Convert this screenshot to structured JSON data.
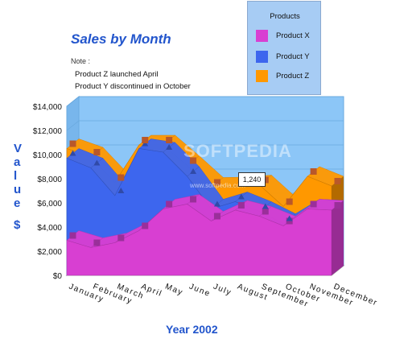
{
  "chart_data": {
    "type": "area",
    "title": "Sales by Month",
    "xlabel": "Year 2002",
    "ylabel": "Value $",
    "ylim": [
      0,
      14000
    ],
    "yticks": [
      "$0",
      "$2,000",
      "$4,000",
      "$6,000",
      "$8,000",
      "$10,000",
      "$12,000",
      "$14,000"
    ],
    "categories": [
      "January",
      "February",
      "March",
      "April",
      "May",
      "June",
      "July",
      "August",
      "September",
      "October",
      "November",
      "December"
    ],
    "stacked": true,
    "series": [
      {
        "name": "Product X",
        "color": "#d83fd2",
        "values": [
          2900,
          2300,
          2700,
          3700,
          5500,
          5900,
          4500,
          5400,
          4900,
          4100,
          5500,
          5400
        ]
      },
      {
        "name": "Product Y",
        "color": "#3d66ee",
        "values": [
          6800,
          6600,
          3900,
          6800,
          4700,
          2300,
          1000,
          700,
          400,
          200,
          0,
          0
        ]
      },
      {
        "name": "Product Z",
        "color": "#ff9800",
        "values": [
          800,
          900,
          1100,
          300,
          600,
          900,
          1800,
          1240,
          2200,
          1400,
          2700,
          2000
        ]
      }
    ],
    "legend": {
      "title": "Products",
      "position": "top-right"
    },
    "notes": {
      "label": "Note :",
      "lines": [
        "Product Z launched April",
        "Product Y discontinued in October"
      ]
    },
    "annotation": {
      "text": "1,240"
    },
    "grid": true
  },
  "watermark": {
    "text": "SOFTPEDIA",
    "url": "www.softpedia.com"
  }
}
